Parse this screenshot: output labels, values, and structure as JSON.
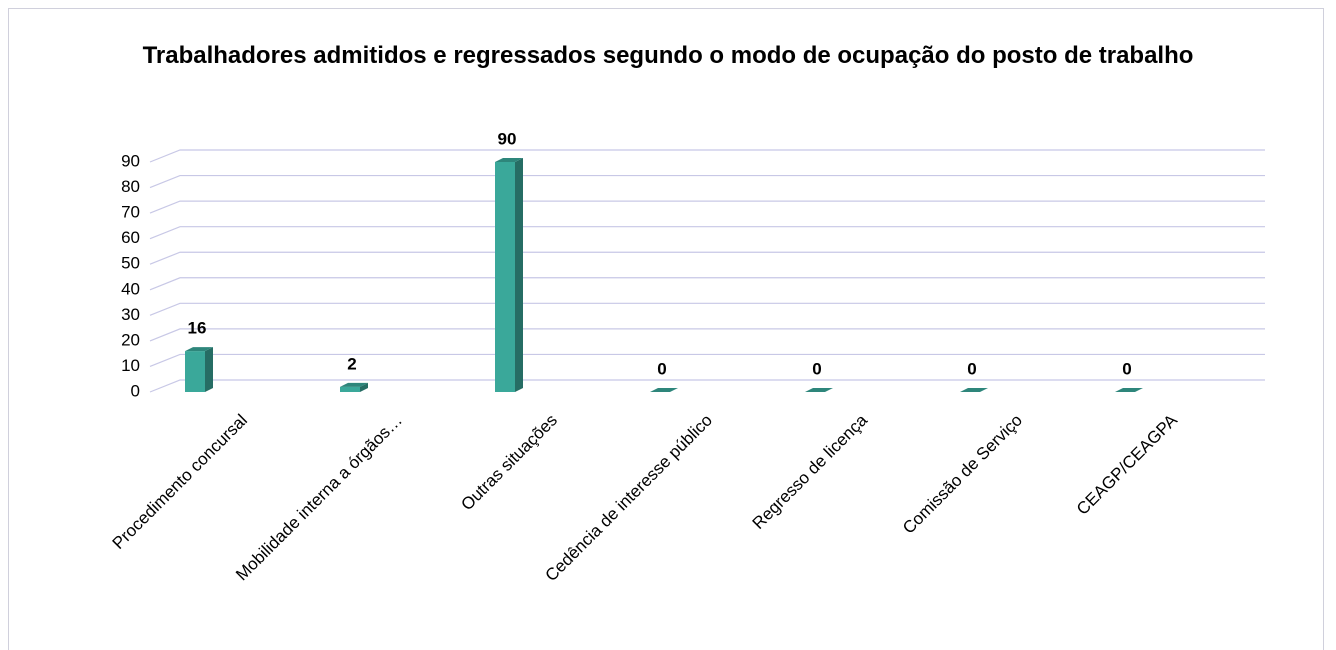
{
  "chart_data": {
    "type": "bar",
    "title": "Trabalhadores admitidos e regressados segundo o modo de ocupação do posto de trabalho",
    "categories": [
      "Procedimento concursal",
      "Mobilidade interna a órgãos…",
      "Outras situações",
      "Cedência de interesse público",
      "Regresso de licença",
      "Comissão de Serviço",
      "CEAGP/CEAGPA"
    ],
    "values": [
      16,
      2,
      90,
      0,
      0,
      0,
      0
    ],
    "color": "#3aa89a",
    "ylim": [
      0,
      90
    ],
    "yticks": [
      0,
      10,
      20,
      30,
      40,
      50,
      60,
      70,
      80,
      90
    ],
    "grid": true
  }
}
